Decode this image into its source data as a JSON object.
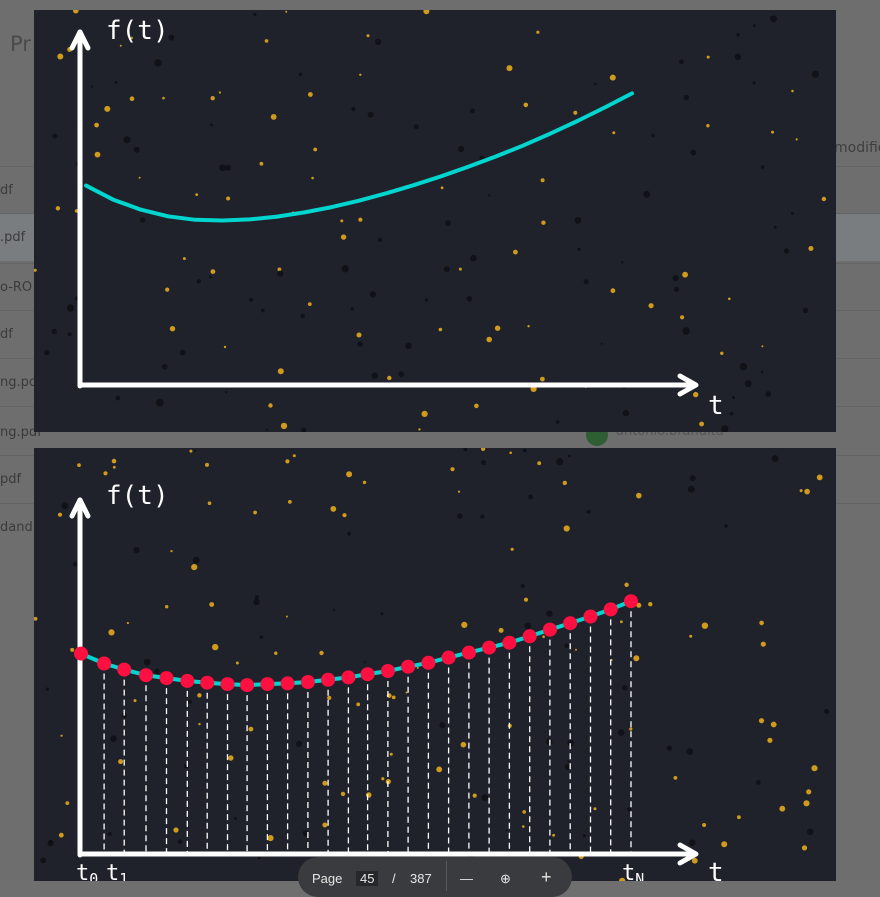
{
  "background_app": {
    "title_fragment": "Pr",
    "column_header": "modifie",
    "rows": [
      ".pdf",
      "o-RO",
      "df",
      "ng.po",
      "ng.pdf",
      "pdf",
      "dand"
    ],
    "owner": "antonio.brandita"
  },
  "chart_data": [
    {
      "type": "line",
      "ylabel": "f(t)",
      "xlabel": "t",
      "xlim": [
        0,
        1
      ],
      "ylim": [
        0,
        1
      ],
      "series": [
        {
          "color": "#00d6cf",
          "x": [
            0,
            0.05,
            0.1,
            0.15,
            0.2,
            0.25,
            0.3,
            0.35,
            0.4,
            0.45,
            0.5,
            0.55,
            0.6,
            0.65,
            0.7,
            0.75,
            0.8,
            0.85,
            0.9,
            0.95,
            1.0
          ],
          "y": [
            0.565,
            0.525,
            0.497,
            0.478,
            0.468,
            0.466,
            0.469,
            0.477,
            0.489,
            0.504,
            0.522,
            0.543,
            0.566,
            0.591,
            0.618,
            0.647,
            0.678,
            0.712,
            0.748,
            0.786,
            0.826
          ]
        }
      ]
    },
    {
      "type": "scatter",
      "ylabel": "f(t)",
      "xlabel": "t",
      "tick_labels": [
        {
          "base": "t",
          "sub": "0"
        },
        {
          "base": "t",
          "sub": "1"
        },
        {
          "base": "t",
          "sub": "N"
        }
      ],
      "xlim": [
        0,
        1
      ],
      "ylim": [
        0,
        1
      ],
      "grid": false,
      "series": [
        {
          "color": "#00d6cf",
          "marker_color": "#ff1040",
          "x": [
            0,
            0.0417,
            0.078,
            0.1174,
            0.1543,
            0.1918,
            0.2278,
            0.2644,
            0.2998,
            0.3364,
            0.3729,
            0.4095,
            0.4461,
            0.4826,
            0.5174,
            0.5539,
            0.5905,
            0.627,
            0.6636,
            0.7002,
            0.7367,
            0.7733,
            0.8099,
            0.8464,
            0.883,
            0.9196,
            0.9561,
            0.9927
          ],
          "y": [
            0.566,
            0.538,
            0.521,
            0.505,
            0.497,
            0.489,
            0.484,
            0.48,
            0.477,
            0.48,
            0.482,
            0.486,
            0.492,
            0.499,
            0.508,
            0.517,
            0.529,
            0.54,
            0.555,
            0.569,
            0.583,
            0.597,
            0.615,
            0.634,
            0.652,
            0.671,
            0.691,
            0.714
          ]
        }
      ]
    }
  ],
  "toolbar": {
    "page_label": "Page",
    "page_value": "45",
    "separator": "/",
    "page_total": "387",
    "zoom_out": "—",
    "zoom_reset": "⊕",
    "zoom_in": "+"
  }
}
